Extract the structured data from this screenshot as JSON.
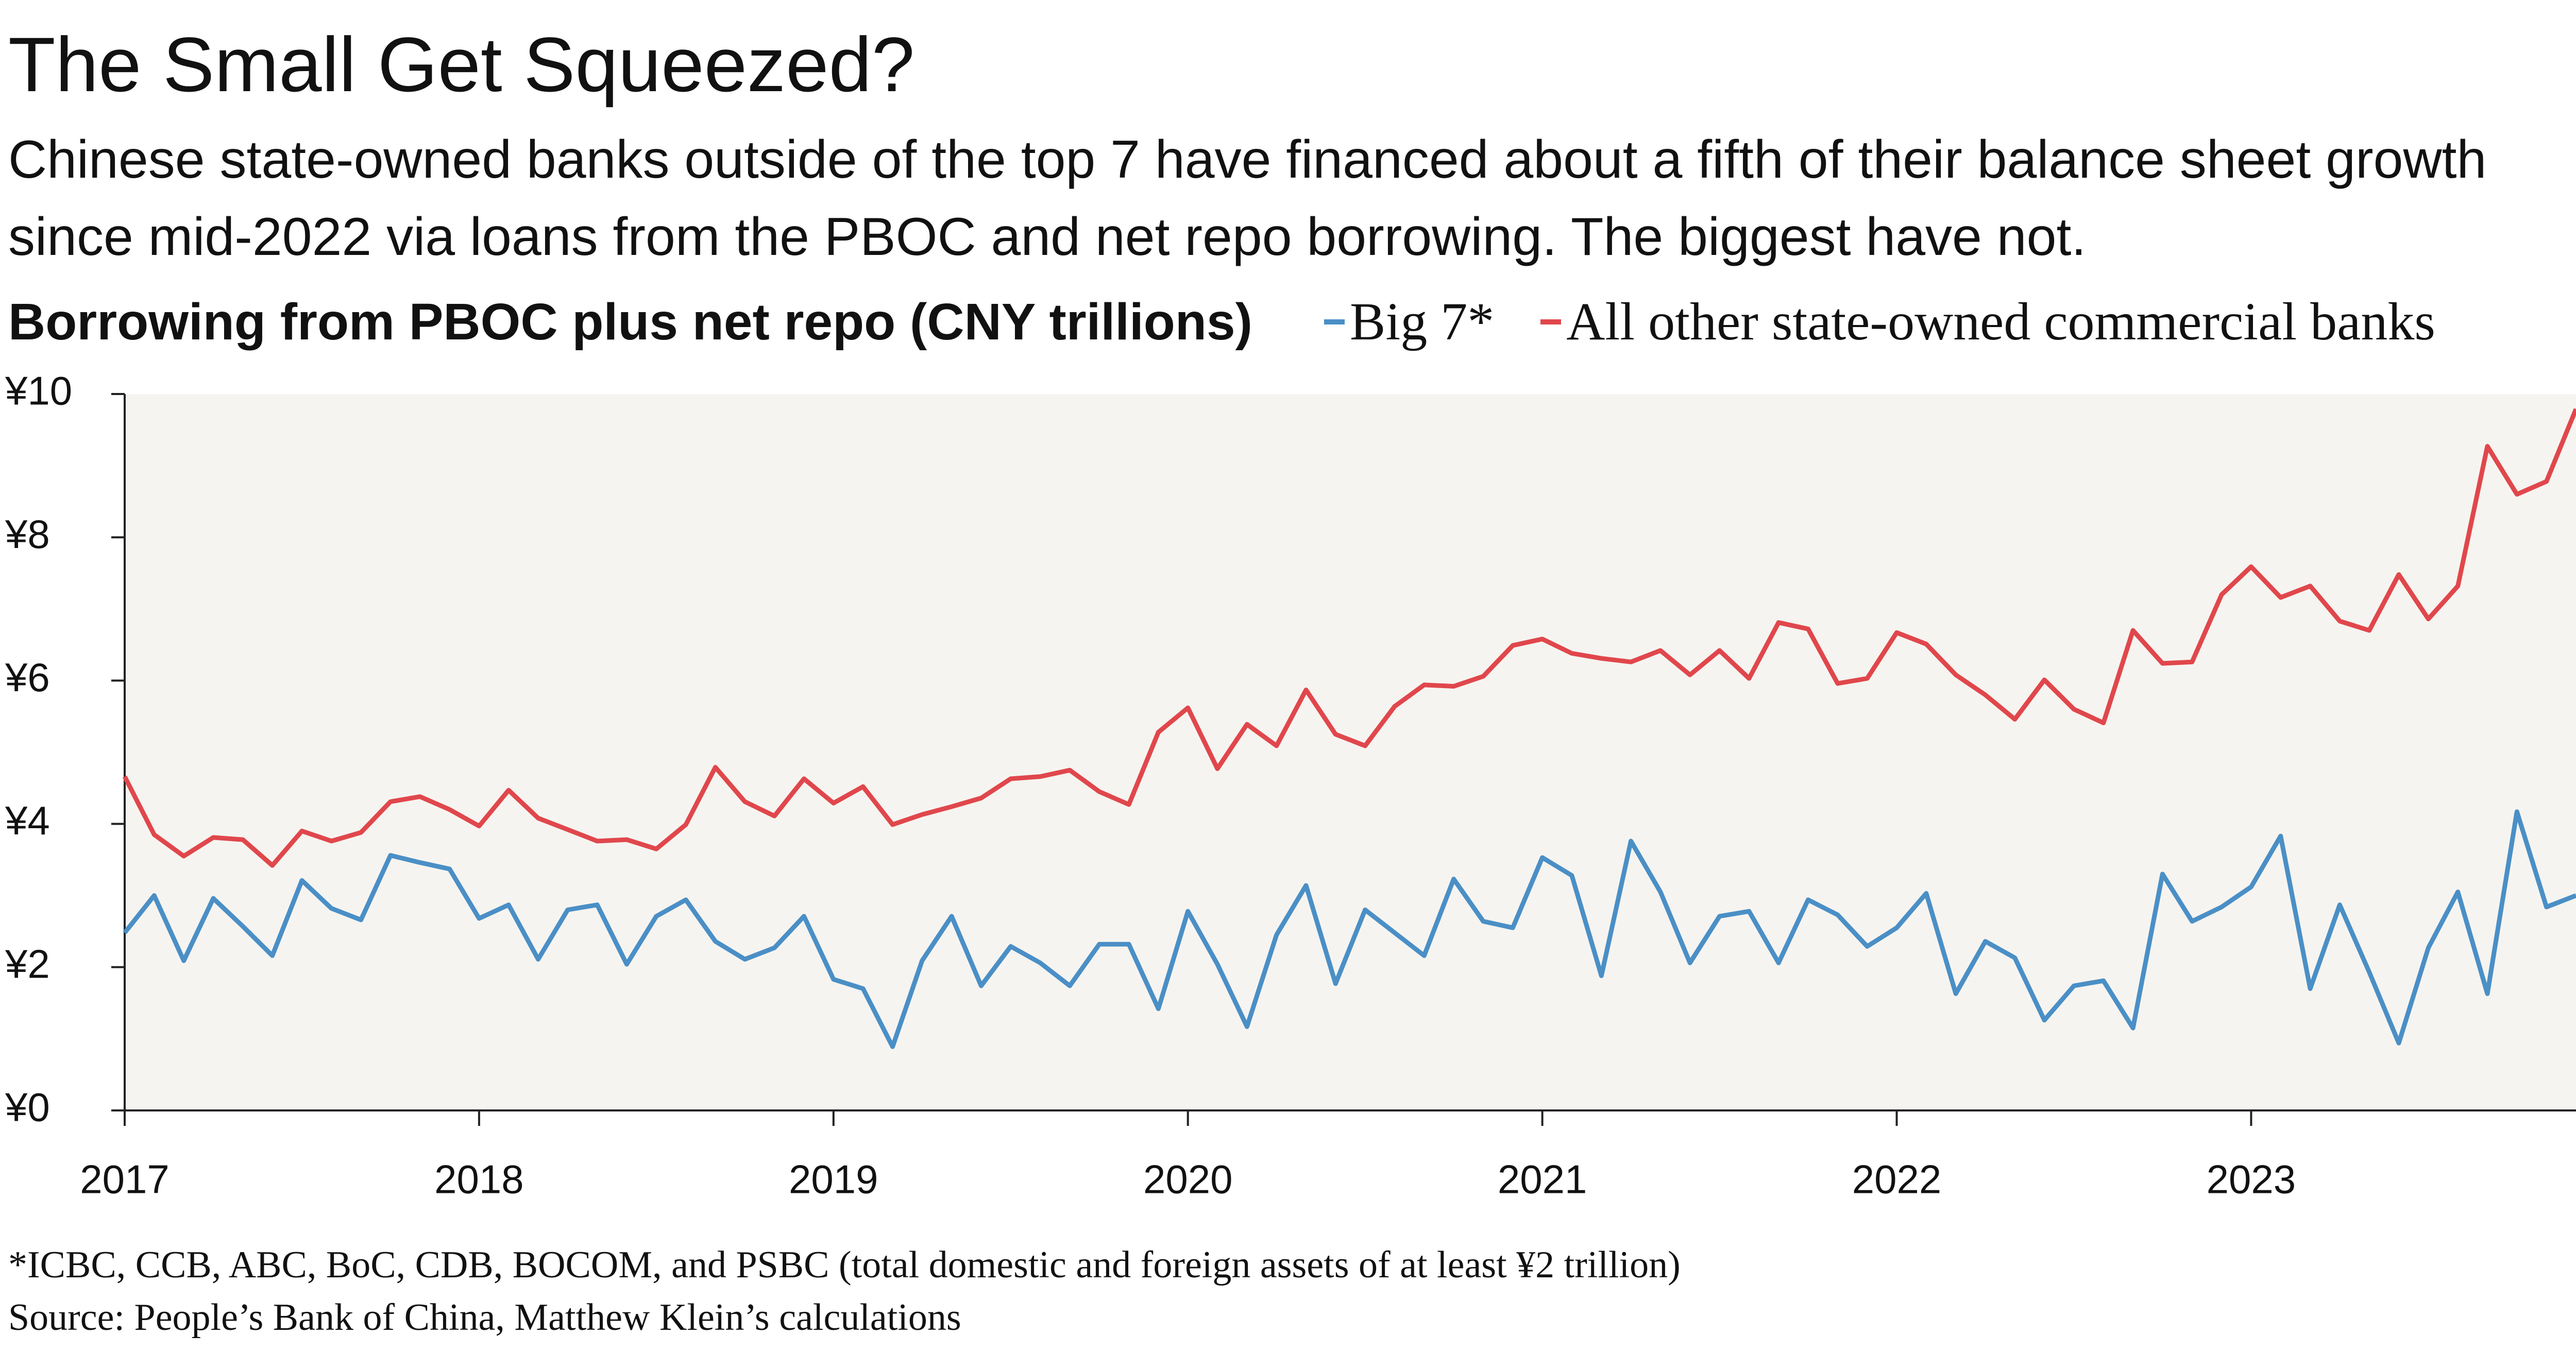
{
  "chart_data": {
    "type": "line",
    "title": "The Small Get Squeezed?",
    "subtitle": "Chinese state-owned banks outside of the top 7 have financed about a fifth of their balance sheet growth since mid-2022 via loans from the PBOC and net repo borrowing. The biggest have not.",
    "y_label": "Borrowing from PBOC plus net repo (CNY trillions)",
    "footnote": "*ICBC, CCB, ABC, BoC, CDB, BOCOM, and PSBC (total domestic and foreign assets of at least ¥2 trillion)",
    "source": "Source: People’s Bank of China, Matthew Klein’s calculations",
    "categories": [
      "2017",
      null,
      null,
      null,
      null,
      null,
      null,
      null,
      null,
      null,
      null,
      null,
      "2018",
      null,
      null,
      null,
      null,
      null,
      null,
      null,
      null,
      null,
      null,
      null,
      "2019",
      null,
      null,
      null,
      null,
      null,
      null,
      null,
      null,
      null,
      null,
      null,
      "2020",
      null,
      null,
      null,
      null,
      null,
      null,
      null,
      null,
      null,
      null,
      null,
      "2021",
      null,
      null,
      null,
      null,
      null,
      null,
      null,
      null,
      null,
      null,
      null,
      "2022",
      null,
      null,
      null,
      null,
      null,
      null,
      null,
      null,
      null,
      null,
      null,
      "2023",
      null,
      null,
      null,
      null,
      null,
      null,
      null,
      null,
      null,
      null,
      null
    ],
    "series": [
      {
        "name": "Big 7*",
        "color": "#4a8fc6",
        "values": [
          2.48,
          3.0,
          2.09,
          2.96,
          2.57,
          2.16,
          3.21,
          2.82,
          2.66,
          3.56,
          3.46,
          3.37,
          2.68,
          2.87,
          2.11,
          2.8,
          2.87,
          2.04,
          2.71,
          2.94,
          2.36,
          2.11,
          2.27,
          2.71,
          1.83,
          1.7,
          0.89,
          2.09,
          2.71,
          1.74,
          2.29,
          2.06,
          1.74,
          2.32,
          2.32,
          1.42,
          2.78,
          2.04,
          1.17,
          2.45,
          3.14,
          1.77,
          2.8,
          2.48,
          2.16,
          3.23,
          2.64,
          2.55,
          3.53,
          3.28,
          1.88,
          3.76,
          3.05,
          2.06,
          2.71,
          2.78,
          2.06,
          2.94,
          2.73,
          2.29,
          2.55,
          3.03,
          1.63,
          2.36,
          2.13,
          1.26,
          1.74,
          1.81,
          1.15,
          3.3,
          2.64,
          2.84,
          3.12,
          3.83,
          1.7,
          2.87,
          1.93,
          0.94,
          2.27,
          3.05,
          1.63,
          4.17,
          2.84,
          3.0
        ]
      },
      {
        "name": "All other state-owned commercial banks",
        "color": "#e0474c",
        "values": [
          4.66,
          3.85,
          3.55,
          3.81,
          3.78,
          3.42,
          3.9,
          3.76,
          3.88,
          4.31,
          4.38,
          4.2,
          3.97,
          4.47,
          4.08,
          3.92,
          3.76,
          3.78,
          3.65,
          3.99,
          4.79,
          4.31,
          4.11,
          4.63,
          4.29,
          4.52,
          3.99,
          4.13,
          4.24,
          4.36,
          4.63,
          4.66,
          4.75,
          4.45,
          4.27,
          5.28,
          5.62,
          4.77,
          5.39,
          5.09,
          5.87,
          5.25,
          5.09,
          5.64,
          5.94,
          5.92,
          6.06,
          6.49,
          6.58,
          6.38,
          6.31,
          6.26,
          6.42,
          6.08,
          6.42,
          6.03,
          6.81,
          6.72,
          5.96,
          6.03,
          6.67,
          6.51,
          6.08,
          5.8,
          5.46,
          6.01,
          5.6,
          5.41,
          6.7,
          6.24,
          6.26,
          7.2,
          7.59,
          7.16,
          7.32,
          6.83,
          6.7,
          7.48,
          6.86,
          7.32,
          9.27,
          8.6,
          8.78,
          9.79
        ]
      }
    ],
    "ylim": [
      0,
      10
    ],
    "yticks": [
      {
        "value": 0,
        "label": "¥0"
      },
      {
        "value": 2,
        "label": "¥2"
      },
      {
        "value": 4,
        "label": "¥4"
      },
      {
        "value": 6,
        "label": "¥6"
      },
      {
        "value": 8,
        "label": "¥8"
      },
      {
        "value": 10,
        "label": "¥10"
      }
    ],
    "grid": false
  }
}
